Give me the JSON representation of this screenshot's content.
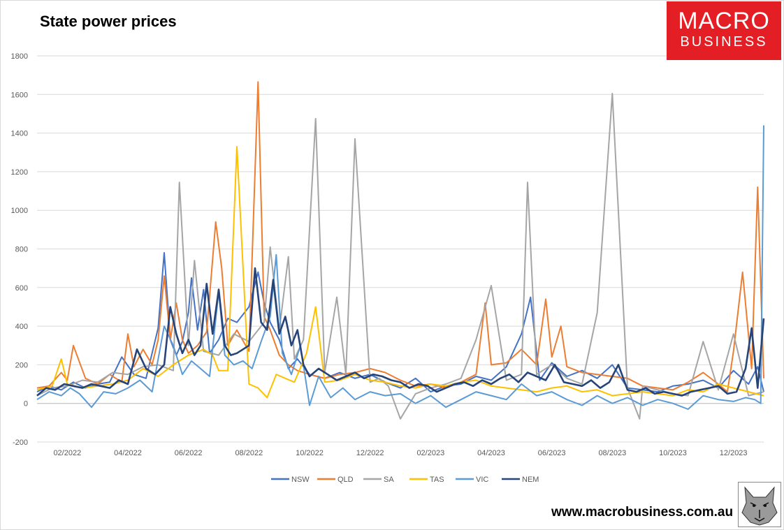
{
  "title": "State power prices",
  "logo": {
    "line1": "MACRO",
    "line2": "BUSINESS"
  },
  "footer_url": "www.macrobusiness.com.au",
  "colors": {
    "NSW": "#4472c4",
    "QLD": "#ed7d31",
    "SA": "#a5a5a5",
    "TAS": "#ffc000",
    "VIC": "#5b9bd5",
    "NEM": "#264478",
    "grid": "#d9d9d9",
    "logo": "#e31e24"
  },
  "chart_data": {
    "type": "line",
    "title": "State power prices",
    "xlabel": "",
    "ylabel": "",
    "ylim": [
      -200,
      1800
    ],
    "yticks": [
      -200,
      0,
      200,
      400,
      600,
      800,
      1000,
      1200,
      1400,
      1600,
      1800
    ],
    "x_range": [
      "02/2022",
      "02/2024"
    ],
    "x_tick_labels": [
      "02/2022",
      "04/2022",
      "06/2022",
      "08/2022",
      "10/2022",
      "12/2022",
      "02/2023",
      "04/2023",
      "06/2023",
      "08/2023",
      "10/2023",
      "12/2023"
    ],
    "grid": "horizontal",
    "legend": "bottom",
    "x_units": "months since 01/2022",
    "series": [
      {
        "name": "NSW",
        "x": [
          1.0,
          1.4,
          1.8,
          2.2,
          2.6,
          3.0,
          3.4,
          3.8,
          4.2,
          4.6,
          5.0,
          5.2,
          5.4,
          5.6,
          5.8,
          6.0,
          6.1,
          6.3,
          6.5,
          6.7,
          7.0,
          7.3,
          7.6,
          8.0,
          8.3,
          8.5,
          8.7,
          9.0,
          9.3,
          9.6,
          10.0,
          10.5,
          11.0,
          11.5,
          12.0,
          12.5,
          13.0,
          13.5,
          14.0,
          14.5,
          15.0,
          15.5,
          16.0,
          16.5,
          17.0,
          17.3,
          17.6,
          18.0,
          18.5,
          19.0,
          19.5,
          20.0,
          20.5,
          21.0,
          21.5,
          22.0,
          22.5,
          23.0,
          23.5,
          24.0,
          24.5,
          24.8,
          25.0
        ],
        "y": [
          60,
          90,
          70,
          110,
          80,
          100,
          110,
          240,
          150,
          130,
          390,
          780,
          330,
          250,
          320,
          470,
          650,
          380,
          590,
          260,
          330,
          440,
          420,
          500,
          680,
          520,
          420,
          330,
          180,
          230,
          150,
          130,
          160,
          130,
          150,
          110,
          80,
          130,
          60,
          90,
          100,
          140,
          120,
          190,
          360,
          550,
          120,
          210,
          140,
          170,
          130,
          200,
          80,
          70,
          60,
          90,
          100,
          120,
          80,
          170,
          100,
          190,
          60
        ]
      },
      {
        "name": "QLD",
        "x": [
          1.0,
          1.4,
          1.8,
          2.0,
          2.2,
          2.6,
          3.0,
          3.4,
          3.8,
          4.0,
          4.2,
          4.5,
          4.8,
          5.0,
          5.2,
          5.4,
          5.6,
          5.8,
          6.0,
          6.3,
          6.6,
          6.9,
          7.1,
          7.3,
          7.6,
          8.0,
          8.3,
          8.5,
          8.7,
          9.0,
          9.3,
          9.6,
          10.0,
          10.5,
          11.0,
          11.5,
          12.0,
          12.5,
          13.0,
          13.5,
          14.0,
          14.5,
          15.0,
          15.5,
          15.8,
          16.0,
          16.5,
          17.0,
          17.5,
          17.8,
          18.0,
          18.3,
          18.5,
          19.0,
          19.5,
          20.0,
          20.5,
          21.0,
          21.5,
          22.0,
          22.5,
          23.0,
          23.5,
          23.8,
          24.0,
          24.3,
          24.6,
          24.8,
          25.0
        ],
        "y": [
          80,
          90,
          160,
          120,
          300,
          130,
          100,
          150,
          110,
          360,
          190,
          280,
          200,
          330,
          660,
          330,
          520,
          330,
          260,
          300,
          370,
          940,
          700,
          300,
          380,
          270,
          1665,
          450,
          380,
          250,
          200,
          170,
          150,
          130,
          150,
          160,
          180,
          160,
          120,
          90,
          100,
          80,
          110,
          150,
          520,
          200,
          210,
          280,
          200,
          540,
          240,
          400,
          190,
          160,
          150,
          140,
          130,
          90,
          80,
          70,
          110,
          160,
          100,
          60,
          270,
          680,
          180,
          1120,
          130
        ]
      },
      {
        "name": "SA",
        "x": [
          1.0,
          1.5,
          2.0,
          2.5,
          3.0,
          3.5,
          4.0,
          4.5,
          5.0,
          5.5,
          5.7,
          6.0,
          6.2,
          6.5,
          7.0,
          7.5,
          8.0,
          8.5,
          8.7,
          9.0,
          9.3,
          9.5,
          9.8,
          10.2,
          10.5,
          10.9,
          11.2,
          11.5,
          12.0,
          12.3,
          12.6,
          13.0,
          13.5,
          14.0,
          14.5,
          15.0,
          15.5,
          16.0,
          16.5,
          17.0,
          17.2,
          17.5,
          18.0,
          18.5,
          19.0,
          19.5,
          20.0,
          20.5,
          20.9,
          21.0,
          21.5,
          22.0,
          22.5,
          23.0,
          23.5,
          24.0,
          24.5,
          25.0
        ],
        "y": [
          40,
          80,
          90,
          120,
          110,
          160,
          150,
          190,
          200,
          170,
          1145,
          300,
          740,
          270,
          250,
          360,
          320,
          420,
          810,
          380,
          760,
          230,
          330,
          1475,
          160,
          550,
          150,
          1370,
          110,
          130,
          90,
          -80,
          50,
          80,
          100,
          130,
          330,
          610,
          120,
          150,
          1145,
          150,
          200,
          130,
          100,
          470,
          1605,
          80,
          -80,
          90,
          70,
          50,
          40,
          320,
          70,
          360,
          40,
          60
        ]
      },
      {
        "name": "TAS",
        "x": [
          1.0,
          1.5,
          1.8,
          2.0,
          2.5,
          3.0,
          3.5,
          4.0,
          4.5,
          5.0,
          5.5,
          6.0,
          6.5,
          6.8,
          7.0,
          7.3,
          7.6,
          8.0,
          8.3,
          8.6,
          8.9,
          9.2,
          9.5,
          9.9,
          10.2,
          10.5,
          11.0,
          11.5,
          12.0,
          12.5,
          13.0,
          13.5,
          14.0,
          14.5,
          15.0,
          15.5,
          16.0,
          16.5,
          17.0,
          17.5,
          18.0,
          18.5,
          19.0,
          19.5,
          20.0,
          20.5,
          21.0,
          21.5,
          22.0,
          22.5,
          23.0,
          23.5,
          24.0,
          24.5,
          25.0
        ],
        "y": [
          70,
          90,
          230,
          100,
          80,
          90,
          100,
          120,
          180,
          140,
          200,
          250,
          280,
          250,
          170,
          170,
          1330,
          100,
          80,
          30,
          150,
          130,
          110,
          260,
          500,
          110,
          120,
          150,
          120,
          110,
          90,
          80,
          100,
          90,
          110,
          120,
          90,
          80,
          70,
          60,
          80,
          90,
          60,
          70,
          40,
          50,
          60,
          50,
          40,
          70,
          60,
          100,
          80,
          60,
          40
        ]
      },
      {
        "name": "VIC",
        "x": [
          1.0,
          1.4,
          1.8,
          2.1,
          2.4,
          2.8,
          3.2,
          3.6,
          4.0,
          4.4,
          4.8,
          5.2,
          5.5,
          5.8,
          6.1,
          6.4,
          6.7,
          7.0,
          7.2,
          7.5,
          7.8,
          8.1,
          8.4,
          8.7,
          8.9,
          9.1,
          9.4,
          9.7,
          10.0,
          10.3,
          10.7,
          11.1,
          11.5,
          12.0,
          12.5,
          13.0,
          13.5,
          14.0,
          14.5,
          15.0,
          15.5,
          16.0,
          16.5,
          17.0,
          17.5,
          18.0,
          18.5,
          19.0,
          19.5,
          20.0,
          20.5,
          21.0,
          21.5,
          22.0,
          22.5,
          23.0,
          23.5,
          24.0,
          24.4,
          24.7,
          24.9,
          25.0
        ],
        "y": [
          20,
          60,
          40,
          80,
          50,
          -20,
          60,
          50,
          80,
          120,
          60,
          400,
          300,
          150,
          220,
          180,
          140,
          580,
          250,
          200,
          220,
          180,
          320,
          450,
          770,
          260,
          150,
          300,
          -10,
          140,
          30,
          80,
          20,
          60,
          40,
          50,
          0,
          40,
          -20,
          20,
          60,
          40,
          20,
          100,
          40,
          60,
          20,
          -10,
          40,
          0,
          30,
          -10,
          20,
          0,
          -30,
          40,
          20,
          10,
          30,
          20,
          0,
          1440
        ]
      },
      {
        "name": "NEM",
        "x": [
          1.0,
          1.3,
          1.6,
          1.9,
          2.2,
          2.5,
          2.8,
          3.1,
          3.4,
          3.7,
          4.0,
          4.3,
          4.6,
          4.9,
          5.2,
          5.4,
          5.6,
          5.8,
          6.0,
          6.2,
          6.4,
          6.6,
          6.8,
          7.0,
          7.2,
          7.4,
          7.6,
          7.8,
          8.0,
          8.2,
          8.4,
          8.6,
          8.8,
          9.0,
          9.2,
          9.4,
          9.6,
          9.8,
          10.0,
          10.3,
          10.6,
          10.9,
          11.2,
          11.5,
          11.8,
          12.1,
          12.4,
          12.7,
          13.0,
          13.3,
          13.6,
          13.9,
          14.2,
          14.5,
          14.8,
          15.1,
          15.4,
          15.7,
          16.0,
          16.3,
          16.6,
          16.9,
          17.2,
          17.5,
          17.8,
          18.1,
          18.4,
          18.7,
          19.0,
          19.3,
          19.6,
          19.9,
          20.2,
          20.5,
          20.8,
          21.1,
          21.4,
          21.7,
          22.0,
          22.3,
          22.6,
          22.9,
          23.2,
          23.5,
          23.8,
          24.1,
          24.4,
          24.6,
          24.8,
          25.0
        ],
        "y": [
          40,
          80,
          70,
          100,
          90,
          80,
          100,
          90,
          80,
          120,
          100,
          280,
          180,
          150,
          200,
          500,
          360,
          260,
          330,
          250,
          300,
          620,
          360,
          590,
          300,
          250,
          260,
          280,
          300,
          700,
          420,
          380,
          640,
          360,
          450,
          300,
          380,
          200,
          140,
          180,
          150,
          120,
          140,
          160,
          130,
          150,
          140,
          120,
          110,
          80,
          100,
          90,
          60,
          80,
          100,
          110,
          90,
          120,
          100,
          130,
          150,
          110,
          160,
          140,
          120,
          200,
          110,
          100,
          90,
          120,
          80,
          110,
          200,
          70,
          60,
          80,
          50,
          60,
          50,
          40,
          60,
          70,
          80,
          90,
          50,
          60,
          180,
          390,
          80,
          440
        ]
      }
    ]
  }
}
